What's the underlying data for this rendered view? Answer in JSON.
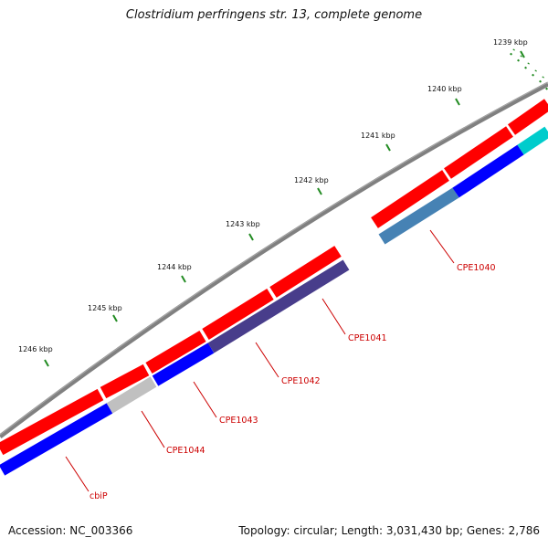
{
  "title": "Clostridium perfringens str. 13, complete genome",
  "accession": "Accession: NC_003366",
  "summary": "Topology: circular; Length: 3,031,430 bp; Genes: 2,786",
  "colors": {
    "backbone": "#808080",
    "cds_strand": "#ff0000",
    "tick": "#228b22",
    "label": "#cc0000"
  },
  "ticks": [
    {
      "label": "1239 kbp"
    },
    {
      "label": "1240 kbp"
    },
    {
      "label": "1241 kbp"
    },
    {
      "label": "1242 kbp"
    },
    {
      "label": "1243 kbp"
    },
    {
      "label": "1244 kbp"
    },
    {
      "label": "1245 kbp"
    },
    {
      "label": "1246 kbp"
    }
  ],
  "genes": [
    {
      "name": "CPE1040",
      "color": "#4682b4"
    },
    {
      "name": "CPE1041",
      "color": "#483d8b"
    },
    {
      "name": "CPE1042",
      "color": "#483d8b"
    },
    {
      "name": "CPE1043",
      "color": "#0000ff"
    },
    {
      "name": "CPE1044",
      "color": "#c0c0c0"
    },
    {
      "name": "cbiP",
      "color": "#0000ff"
    }
  ]
}
